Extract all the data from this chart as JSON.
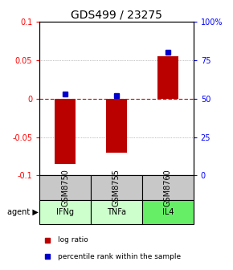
{
  "title": "GDS499 / 23275",
  "samples": [
    "GSM8750",
    "GSM8755",
    "GSM8760"
  ],
  "agents": [
    "IFNg",
    "TNFa",
    "IL4"
  ],
  "log_ratios": [
    -0.085,
    -0.07,
    0.055
  ],
  "percentile_ranks": [
    53,
    52,
    80
  ],
  "ylim_left": [
    -0.1,
    0.1
  ],
  "ylim_right": [
    0,
    100
  ],
  "yticks_left": [
    -0.1,
    -0.05,
    0,
    0.05,
    0.1
  ],
  "yticks_right": [
    0,
    25,
    50,
    75,
    100
  ],
  "ytick_labels_right": [
    "0",
    "25",
    "50",
    "75",
    "100%"
  ],
  "bar_color": "#bb0000",
  "dot_color": "#0000cc",
  "bar_width": 0.4,
  "zero_line_color": "#cc0000",
  "sample_bg_color": "#c8c8c8",
  "agent_bg_color_light": "#ccffcc",
  "agent_bg_color_dark": "#66ee66",
  "title_fontsize": 10,
  "axis_fontsize": 7,
  "label_fontsize": 7,
  "legend_fontsize": 6.5
}
